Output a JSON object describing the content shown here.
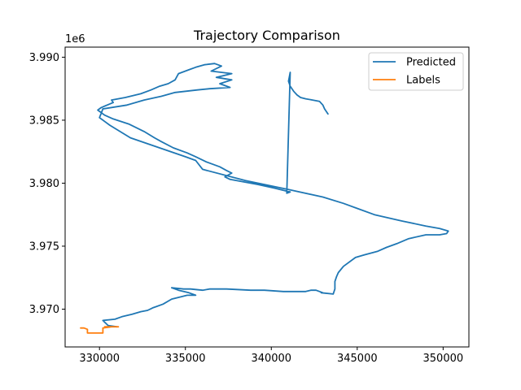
{
  "chart_data": {
    "type": "line",
    "title": "Trajectory Comparison",
    "xlabel": "",
    "ylabel": "",
    "y_offset_text": "1e6",
    "xlim": [
      328000,
      351500
    ],
    "ylim": [
      3967000,
      3990800
    ],
    "x_ticks": [
      330000,
      335000,
      340000,
      345000,
      350000
    ],
    "x_tick_labels": [
      "330000",
      "335000",
      "340000",
      "345000",
      "350000"
    ],
    "y_ticks": [
      3970000,
      3975000,
      3980000,
      3985000,
      3990000
    ],
    "y_tick_labels": [
      "3.970",
      "3.975",
      "3.980",
      "3.985",
      "3.990"
    ],
    "grid": false,
    "legend_position": "top-right",
    "series": [
      {
        "name": "Predicted",
        "color": "#1f77b4",
        "x": [
          331000,
          330500,
          330200,
          330900,
          331300,
          331900,
          332400,
          332800,
          333100,
          333300,
          333700,
          334200,
          334800,
          335100,
          335600,
          335200,
          334600,
          334200,
          334900,
          335300,
          336000,
          336400,
          336500,
          337400,
          338800,
          339600,
          340700,
          341300,
          342000,
          342300,
          342400,
          342600,
          343000,
          342900,
          343600,
          343700,
          343700,
          343800,
          343900,
          344200,
          344900,
          345400,
          346200,
          346700,
          347300,
          348000,
          349000,
          349800,
          350200,
          350300,
          349800,
          349000,
          347600,
          346000,
          345000,
          344200,
          343000,
          341000,
          338500,
          336000,
          335600,
          335000,
          333500,
          331800,
          330600,
          330000,
          330200,
          331600,
          332600,
          333600,
          334400,
          335700,
          336400,
          337600,
          337000,
          337700,
          336800,
          337700,
          336500,
          337100,
          336700,
          336100,
          335600,
          335200,
          334600,
          334400,
          334000,
          333500,
          333000,
          332400,
          331500,
          330700,
          330800,
          330100,
          329900,
          330300,
          330800,
          331700,
          332600,
          333200,
          333600,
          334300,
          335100,
          335600,
          336200,
          337000,
          337400,
          337700,
          337300,
          337600,
          338400,
          339200,
          340200,
          340800,
          341100,
          340900,
          341100,
          341000,
          341100,
          341300,
          341500,
          341700,
          342000,
          342400,
          342800,
          343000,
          343100,
          343300
        ],
        "y": [
          3968600,
          3968700,
          3969100,
          3969200,
          3969400,
          3969600,
          3969800,
          3969900,
          3970100,
          3970200,
          3970400,
          3970800,
          3971000,
          3971100,
          3971100,
          3971300,
          3971500,
          3971700,
          3971600,
          3971600,
          3971500,
          3971600,
          3971600,
          3971600,
          3971500,
          3971500,
          3971400,
          3971400,
          3971400,
          3971500,
          3971500,
          3971500,
          3971300,
          3971300,
          3971200,
          3971600,
          3972200,
          3972600,
          3972900,
          3973400,
          3974100,
          3974300,
          3974600,
          3974900,
          3975200,
          3975600,
          3975900,
          3975900,
          3976000,
          3976200,
          3976400,
          3976600,
          3977000,
          3977500,
          3978000,
          3978400,
          3978900,
          3979500,
          3980200,
          3981100,
          3981800,
          3982100,
          3982800,
          3983600,
          3984600,
          3985200,
          3985900,
          3986200,
          3986600,
          3986900,
          3987200,
          3987400,
          3987500,
          3987600,
          3987900,
          3988200,
          3988400,
          3988700,
          3988900,
          3989300,
          3989500,
          3989400,
          3989200,
          3989000,
          3988700,
          3988200,
          3987900,
          3987700,
          3987400,
          3987100,
          3986800,
          3986600,
          3986400,
          3986000,
          3985800,
          3985400,
          3985100,
          3984700,
          3984100,
          3983600,
          3983300,
          3982800,
          3982400,
          3982100,
          3981700,
          3981300,
          3981000,
          3980800,
          3980500,
          3980300,
          3980100,
          3979900,
          3979600,
          3979400,
          3979300,
          3979200,
          3988800,
          3988100,
          3987700,
          3987300,
          3987000,
          3986800,
          3986700,
          3986600,
          3986500,
          3986200,
          3985900,
          3985500
        ]
      },
      {
        "name": "Labels",
        "color": "#ff7f0e",
        "x": [
          328900,
          329100,
          329300,
          329300,
          329700,
          330100,
          330200,
          330200,
          330700,
          331100,
          330700,
          330300
        ],
        "y": [
          3968500,
          3968500,
          3968400,
          3968100,
          3968100,
          3968100,
          3968100,
          3968500,
          3968600,
          3968600,
          3968600,
          3968600
        ]
      }
    ]
  }
}
